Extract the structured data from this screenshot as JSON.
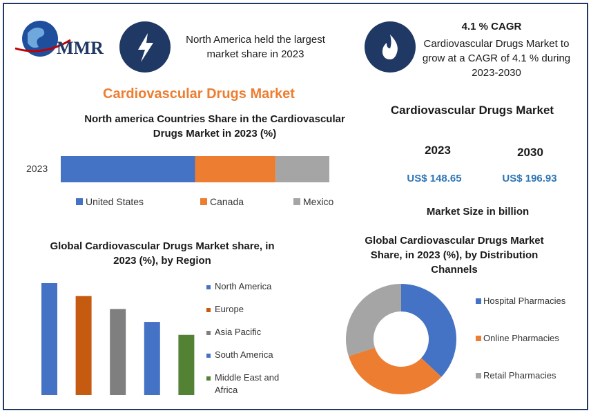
{
  "logo": {
    "text": "MMR"
  },
  "highlights": [
    {
      "text": "North America held the largest market share in 2023"
    },
    {
      "title": "4.1 % CAGR",
      "text": "Cardiovascular Drugs Market to grow at a CAGR of 4.1 % during 2023-2030"
    }
  ],
  "main_title": "Cardiovascular Drugs Market",
  "market_size": {
    "title": "Cardiovascular Drugs Market",
    "years": [
      "2023",
      "2030"
    ],
    "values": [
      "US$ 148.65",
      "US$ 196.93"
    ],
    "note": "Market Size in billion"
  },
  "chart_data": [
    {
      "type": "stacked_hbar",
      "title": "North america Countries Share in the  Cardiovascular Drugs Market in 2023 (%)",
      "categories": [
        "2023"
      ],
      "series": [
        {
          "name": "United States",
          "color": "#4472c4",
          "values": [
            50
          ]
        },
        {
          "name": "Canada",
          "color": "#ed7d31",
          "values": [
            30
          ]
        },
        {
          "name": "Mexico",
          "color": "#a5a5a5",
          "values": [
            20
          ]
        }
      ]
    },
    {
      "type": "bar",
      "title": "Global Cardiovascular Drugs Market share, in 2023 (%), by Region",
      "categories": [
        "North America",
        "Europe",
        "Asia Pacific",
        "South America",
        "Middle East and Africa"
      ],
      "values": [
        26,
        23,
        20,
        17,
        14
      ],
      "colors": [
        "#4472c4",
        "#c55a11",
        "#7f7f7f",
        "#4472c4",
        "#548235"
      ]
    },
    {
      "type": "donut",
      "title": "Global Cardiovascular Drugs Market Share, in 2023 (%), by Distribution Channels",
      "categories": [
        "Hospital Pharmacies",
        "Online Pharmacies",
        "Retail Pharmacies"
      ],
      "values": [
        37,
        33,
        30
      ],
      "colors": [
        "#4472c4",
        "#ed7d31",
        "#a5a5a5"
      ]
    }
  ]
}
